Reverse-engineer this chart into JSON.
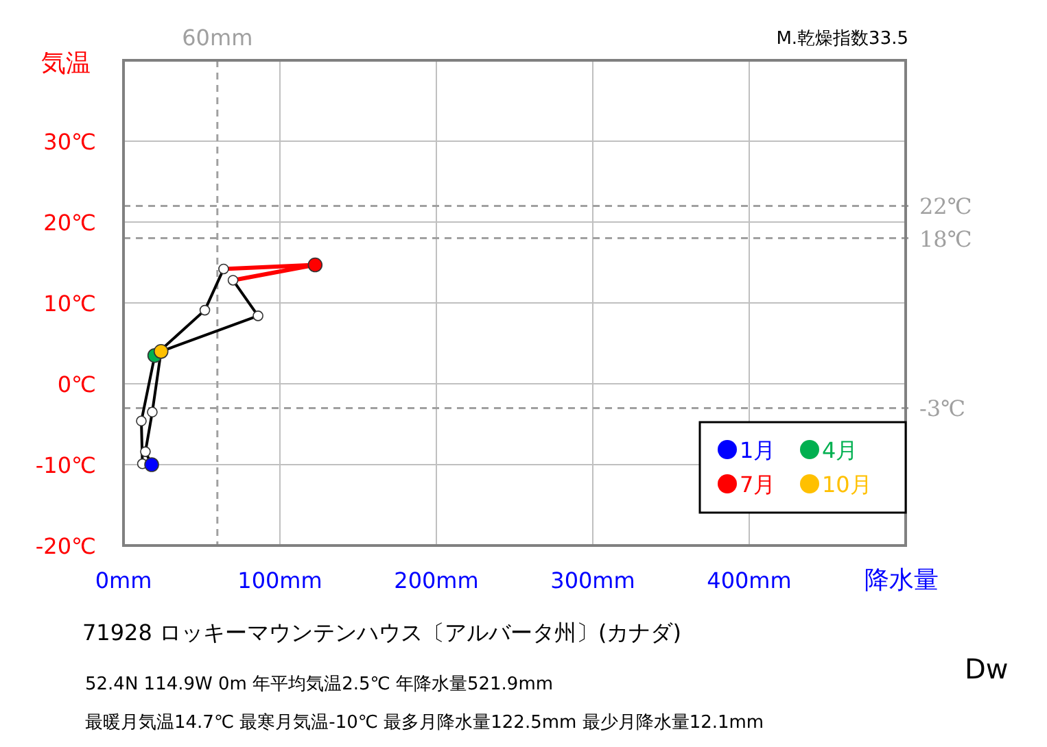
{
  "chart_data": {
    "type": "line",
    "title": "71928  ロッキーマウンテンハウス〔アルバータ州〕(カナダ)",
    "xlabel": "降水量",
    "ylabel": "気温",
    "xlim": [
      0,
      500
    ],
    "ylim": [
      -20,
      40
    ],
    "xticks": [
      {
        "value": 0,
        "label": "0mm"
      },
      {
        "value": 100,
        "label": "100mm"
      },
      {
        "value": 200,
        "label": "200mm"
      },
      {
        "value": 300,
        "label": "300mm"
      },
      {
        "value": 400,
        "label": "400mm"
      }
    ],
    "yticks": [
      {
        "value": -20,
        "label": "-20℃"
      },
      {
        "value": -10,
        "label": "-10℃"
      },
      {
        "value": 0,
        "label": "0℃"
      },
      {
        "value": 10,
        "label": "10℃"
      },
      {
        "value": 20,
        "label": "20℃"
      },
      {
        "value": 30,
        "label": "30℃"
      }
    ],
    "grid": true,
    "legend": "bottom right",
    "series": [
      {
        "marker": "none",
        "color": "#000000",
        "x": [
          70,
          86,
          24,
          18.4,
          14,
          18,
          12.1,
          11.4,
          20,
          52,
          64
        ],
        "values": [
          12.8,
          8.4,
          4,
          -3.5,
          -8.4,
          -10,
          -9.9,
          -4.6,
          3.5,
          9.1,
          14.2
        ]
      },
      {
        "marker": "none",
        "color": "#ff0000",
        "x": [
          64,
          122.5,
          70
        ],
        "values": [
          14.2,
          14.7,
          12.8
        ]
      },
      {
        "type": "scatter",
        "marker": "circle",
        "color": "#ffffff",
        "x": [
          12.1,
          11.4,
          52,
          64,
          70,
          86,
          18.4,
          14
        ],
        "values": [
          -9.9,
          -4.6,
          9.1,
          14.2,
          12.8,
          8.4,
          -3.5,
          -8.4
        ]
      },
      {
        "type": "scatter",
        "marker": "circle",
        "name": "1月",
        "color": "#0000ff",
        "x": [
          18
        ],
        "values": [
          -10
        ]
      },
      {
        "type": "scatter",
        "marker": "circle",
        "name": "4月",
        "color": "#00b050",
        "x": [
          20
        ],
        "values": [
          3.5
        ]
      },
      {
        "type": "scatter",
        "marker": "circle",
        "name": "7月",
        "color": "#ff0000",
        "x": [
          122.5
        ],
        "values": [
          14.7
        ]
      },
      {
        "type": "scatter",
        "marker": "circle",
        "name": "10月",
        "color": "#ffc000",
        "x": [
          24
        ],
        "values": [
          4
        ]
      }
    ],
    "ref_lines": [
      {
        "axis": "y",
        "value": 22,
        "label": "22℃",
        "color": "#a0a0a0",
        "line_style": "dashed"
      },
      {
        "axis": "y",
        "value": 18,
        "label": "18℃",
        "color": "#a0a0a0",
        "line_style": "dashed"
      },
      {
        "axis": "y",
        "value": -3,
        "label": "-3℃",
        "color": "#a0a0a0",
        "line_style": "dashed"
      },
      {
        "axis": "x",
        "value": 60,
        "label": "60mm",
        "color": "#a0a0a0",
        "line_style": "dashed"
      }
    ],
    "annotations": [
      "M.乾燥指数33.5",
      "52.4N  114.9W 0m  年平均気温2.5℃ 年降水量521.9mm",
      "最暖月気温14.7℃ 最寒月気温-10℃ 最多月降水量122.5mm 最少月降水量12.1mm",
      "Dw"
    ]
  }
}
